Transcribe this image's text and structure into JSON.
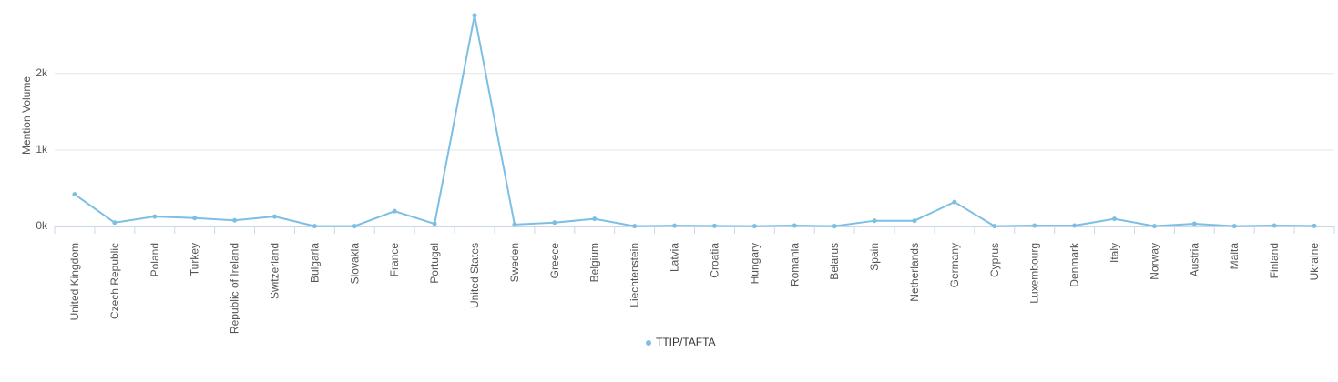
{
  "chart_data": {
    "type": "line",
    "y_label": "Mention Volume",
    "categories": [
      "United Kingdom",
      "Czech Republic",
      "Poland",
      "Turkey",
      "Republic of Ireland",
      "Switzerland",
      "Bulgaria",
      "Slovakia",
      "France",
      "Portugal",
      "United States",
      "Sweden",
      "Greece",
      "Belgium",
      "Liechtenstein",
      "Latvia",
      "Croatia",
      "Hungary",
      "Romania",
      "Belarus",
      "Spain",
      "Netherlands",
      "Germany",
      "Cyprus",
      "Luxembourg",
      "Denmark",
      "Italy",
      "Norway",
      "Austria",
      "Malta",
      "Finland",
      "Ukraine"
    ],
    "series": [
      {
        "name": "TTIP/TAFTA",
        "color": "#7cbfe3",
        "values": [
          420,
          50,
          130,
          110,
          80,
          130,
          5,
          5,
          200,
          35,
          2760,
          25,
          50,
          100,
          5,
          10,
          8,
          5,
          12,
          5,
          75,
          75,
          320,
          5,
          12,
          12,
          100,
          5,
          35,
          5,
          12,
          8
        ]
      }
    ],
    "ylim": [
      0,
      2960
    ],
    "yticks": [
      {
        "value": 0,
        "label": "0k"
      },
      {
        "value": 1000,
        "label": "1k"
      },
      {
        "value": 2000,
        "label": "2k"
      }
    ],
    "grid": true,
    "legend": "bottom"
  }
}
